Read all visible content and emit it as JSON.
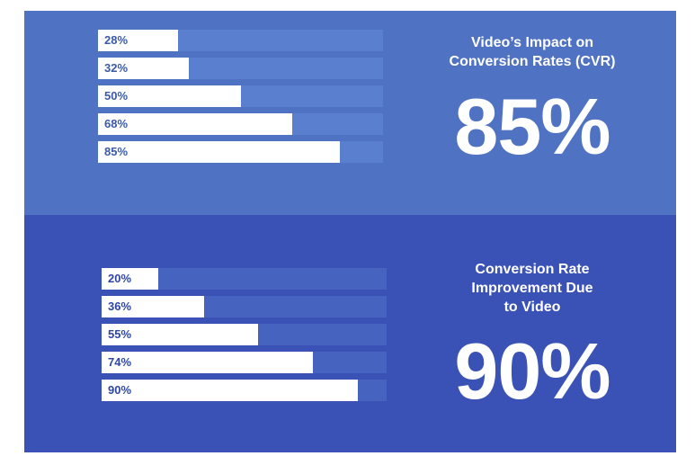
{
  "charts": [
    {
      "title": "Video’s Impact on\nConversion Rates (CVR)",
      "highlight": "85%",
      "bar_labels": [
        "28%",
        "32%",
        "50%",
        "68%",
        "85%"
      ]
    },
    {
      "title": "Conversion Rate\nImprovement Due\nto Video",
      "highlight": "90%",
      "bar_labels": [
        "20%",
        "36%",
        "55%",
        "74%",
        "90%"
      ]
    }
  ],
  "chart_data": [
    {
      "type": "bar",
      "orientation": "horizontal",
      "title": "Video’s Impact on Conversion Rates (CVR)",
      "values": [
        28,
        32,
        50,
        68,
        85
      ],
      "xlim": [
        0,
        100
      ],
      "unit": "%",
      "grid": false
    },
    {
      "type": "bar",
      "orientation": "horizontal",
      "title": "Conversion Rate Improvement Due to Video",
      "values": [
        20,
        36,
        55,
        74,
        90
      ],
      "xlim": [
        0,
        100
      ],
      "unit": "%",
      "grid": false
    }
  ],
  "colors": {
    "panel_top": "#4f72c3",
    "panel_bottom": "#3a52b5",
    "bar_fill": "#ffffff",
    "label_text": "#3b5aa8"
  }
}
